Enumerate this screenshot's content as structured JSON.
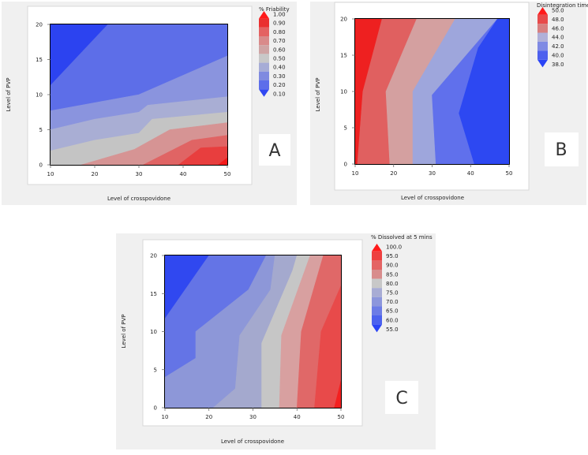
{
  "chart_data": [
    {
      "panel": "A",
      "type": "contour",
      "xlabel": "Level of crosspovidone",
      "ylabel": "Level of PVP",
      "x_ticks": [
        10,
        20,
        30,
        40,
        50
      ],
      "y_ticks": [
        0,
        5,
        10,
        15,
        20
      ],
      "xlim": [
        10,
        50
      ],
      "ylim": [
        0,
        20
      ],
      "legend_title": "% Friability",
      "legend_levels": [
        1.0,
        0.9,
        0.8,
        0.7,
        0.6,
        0.5,
        0.4,
        0.3,
        0.2,
        0.1
      ],
      "legend_labels": [
        "1.00",
        "0.90",
        "0.80",
        "0.70",
        "0.60",
        "0.50",
        "0.40",
        "0.30",
        "0.20",
        "0.10"
      ],
      "bands": [
        {
          "level": 0.2,
          "color": "#2c43f0",
          "polygon": [
            [
              10,
              11.3
            ],
            [
              23,
              20
            ],
            [
              10,
              20
            ]
          ]
        },
        {
          "level": 0.3,
          "color": "#5d6ee8",
          "polygon": [
            [
              10,
              7.7
            ],
            [
              30,
              10
            ],
            [
              50,
              15.5
            ],
            [
              50,
              20
            ],
            [
              23,
              20
            ],
            [
              10,
              11.3
            ]
          ]
        },
        {
          "level": 0.4,
          "color": "#8a94de",
          "polygon": [
            [
              10,
              5
            ],
            [
              20,
              6.5
            ],
            [
              30,
              7.5
            ],
            [
              32,
              8.5
            ],
            [
              50,
              9.7
            ],
            [
              50,
              15.5
            ],
            [
              30,
              10
            ],
            [
              10,
              7.7
            ]
          ]
        },
        {
          "level": 0.5,
          "color": "#a9aed4",
          "polygon": [
            [
              10,
              2
            ],
            [
              20,
              3.5
            ],
            [
              30,
              4.5
            ],
            [
              33,
              6.5
            ],
            [
              50,
              7.5
            ],
            [
              50,
              9.7
            ],
            [
              32,
              8.5
            ],
            [
              30,
              7.5
            ],
            [
              20,
              6.5
            ],
            [
              10,
              5
            ]
          ]
        },
        {
          "level": 0.6,
          "color": "#c4c4c4",
          "polygon": [
            [
              10,
              0
            ],
            [
              17,
              0
            ],
            [
              29,
              2.2
            ],
            [
              37,
              5
            ],
            [
              50,
              6
            ],
            [
              50,
              7.5
            ],
            [
              33,
              6.5
            ],
            [
              30,
              4.5
            ],
            [
              20,
              3.5
            ],
            [
              10,
              2
            ]
          ]
        },
        {
          "level": 0.7,
          "color": "#d69494",
          "polygon": [
            [
              17,
              0
            ],
            [
              31,
              0
            ],
            [
              42,
              3.5
            ],
            [
              50,
              4.2
            ],
            [
              50,
              6
            ],
            [
              37,
              5
            ],
            [
              29,
              2.2
            ]
          ]
        },
        {
          "level": 0.8,
          "color": "#e06464",
          "polygon": [
            [
              31,
              0
            ],
            [
              39,
              0
            ],
            [
              44,
              2.4
            ],
            [
              50,
              2.6
            ],
            [
              50,
              4.2
            ],
            [
              42,
              3.5
            ]
          ]
        },
        {
          "level": 0.9,
          "color": "#e83e3e",
          "polygon": [
            [
              39,
              0
            ],
            [
              48,
              0
            ],
            [
              50,
              1
            ],
            [
              50,
              2.6
            ],
            [
              44,
              2.4
            ]
          ]
        },
        {
          "level": 1.0,
          "color": "#f41a1a",
          "polygon": [
            [
              48,
              0
            ],
            [
              50,
              0
            ],
            [
              50,
              1
            ]
          ]
        }
      ]
    },
    {
      "panel": "B",
      "type": "contour",
      "xlabel": "Level of crosspovidone",
      "ylabel": "Level of PVP",
      "x_ticks": [
        10,
        20,
        30,
        40,
        50
      ],
      "y_ticks": [
        0,
        5,
        10,
        15,
        20
      ],
      "xlim": [
        10,
        50
      ],
      "ylim": [
        0,
        20
      ],
      "legend_title": "Disintegration time",
      "legend_levels": [
        50.0,
        48.0,
        46.0,
        44.0,
        42.0,
        40.0,
        38.0
      ],
      "legend_labels": [
        "50.0",
        "48.0",
        "46.0",
        "44.0",
        "42.0",
        "40.0",
        "38.0"
      ],
      "bands": [
        {
          "level": 48.0,
          "color": "#ee2020",
          "polygon": [
            [
              10,
              0
            ],
            [
              10.6,
              0
            ],
            [
              12,
              10
            ],
            [
              17,
              20
            ],
            [
              10,
              20
            ]
          ]
        },
        {
          "level": 46.0,
          "color": "#e06060",
          "polygon": [
            [
              10.6,
              0
            ],
            [
              19,
              0
            ],
            [
              18,
              10
            ],
            [
              26,
              20
            ],
            [
              17,
              20
            ],
            [
              12,
              10
            ]
          ]
        },
        {
          "level": 44.0,
          "color": "#d4a0a0",
          "polygon": [
            [
              19,
              0
            ],
            [
              25,
              0
            ],
            [
              25,
              10
            ],
            [
              36,
              20
            ],
            [
              26,
              20
            ],
            [
              18,
              10
            ]
          ]
        },
        {
          "level": 42.0,
          "color": "#9ea6dc",
          "polygon": [
            [
              25,
              0
            ],
            [
              31,
              0
            ],
            [
              30,
              9.5
            ],
            [
              47,
              20
            ],
            [
              36,
              20
            ],
            [
              25,
              10
            ]
          ]
        },
        {
          "level": 40.0,
          "color": "#6070ec",
          "polygon": [
            [
              31,
              0
            ],
            [
              41,
              0
            ],
            [
              37,
              7
            ],
            [
              42,
              16
            ],
            [
              47,
              20
            ],
            [
              30,
              9.5
            ]
          ]
        },
        {
          "level": 38.0,
          "color": "#2d48f2",
          "polygon": [
            [
              41,
              0
            ],
            [
              50,
              0
            ],
            [
              50,
              20
            ],
            [
              47,
              20
            ],
            [
              42,
              16
            ],
            [
              37,
              7
            ]
          ]
        }
      ]
    },
    {
      "panel": "C",
      "type": "contour",
      "xlabel": "Level of crosspovidone",
      "ylabel": "Level of PVP",
      "x_ticks": [
        10,
        20,
        30,
        40,
        50
      ],
      "y_ticks": [
        0,
        5,
        10,
        15,
        20
      ],
      "xlim": [
        10,
        50
      ],
      "ylim": [
        0,
        20
      ],
      "legend_title": "% Dissolved at 5 mins",
      "legend_levels": [
        100.0,
        95.0,
        90.0,
        85.0,
        80.0,
        75.0,
        70.0,
        65.0,
        60.0,
        55.0
      ],
      "legend_labels": [
        "100.0",
        "95.0",
        "90.0",
        "85.0",
        "80.0",
        "75.0",
        "70.0",
        "65.0",
        "60.0",
        "55.0"
      ],
      "bands": [
        {
          "level": 60.0,
          "color": "#3048f0",
          "polygon": [
            [
              10,
              11.7
            ],
            [
              20,
              20
            ],
            [
              10,
              20
            ]
          ]
        },
        {
          "level": 65.0,
          "color": "#6474e6",
          "polygon": [
            [
              10,
              4
            ],
            [
              17,
              6.5
            ],
            [
              17,
              10
            ],
            [
              29,
              15.5
            ],
            [
              33,
              20
            ],
            [
              20,
              20
            ],
            [
              10,
              11.7
            ]
          ]
        },
        {
          "level": 70.0,
          "color": "#8d97d8",
          "polygon": [
            [
              10,
              0
            ],
            [
              21,
              0
            ],
            [
              26,
              2.5
            ],
            [
              27,
              9.5
            ],
            [
              34,
              15.5
            ],
            [
              35,
              20
            ],
            [
              33,
              20
            ],
            [
              29,
              15.5
            ],
            [
              17,
              10
            ],
            [
              17,
              6.5
            ],
            [
              10,
              4
            ]
          ]
        },
        {
          "level": 75.0,
          "color": "#a4a9ce",
          "polygon": [
            [
              21,
              0
            ],
            [
              32,
              0
            ],
            [
              32,
              8.5
            ],
            [
              39,
              18
            ],
            [
              40,
              20
            ],
            [
              35,
              20
            ],
            [
              34,
              15.5
            ],
            [
              27,
              9.5
            ],
            [
              26,
              2.5
            ]
          ]
        },
        {
          "level": 80.0,
          "color": "#c6c6c6",
          "polygon": [
            [
              32,
              0
            ],
            [
              36,
              0
            ],
            [
              36.5,
              9.5
            ],
            [
              43,
              20
            ],
            [
              40,
              20
            ],
            [
              39,
              18
            ],
            [
              32,
              8.5
            ]
          ]
        },
        {
          "level": 85.0,
          "color": "#d8a0a0",
          "polygon": [
            [
              36,
              0
            ],
            [
              40,
              0
            ],
            [
              41,
              10
            ],
            [
              46,
              20
            ],
            [
              43,
              20
            ],
            [
              36.5,
              9.5
            ]
          ]
        },
        {
          "level": 90.0,
          "color": "#e06868",
          "polygon": [
            [
              40,
              0
            ],
            [
              44,
              0
            ],
            [
              45.5,
              10
            ],
            [
              50,
              16
            ],
            [
              50,
              20
            ],
            [
              46,
              20
            ],
            [
              41,
              10
            ]
          ]
        },
        {
          "level": 95.0,
          "color": "#e84a4a",
          "polygon": [
            [
              44,
              0
            ],
            [
              48.5,
              0
            ],
            [
              50,
              3.5
            ],
            [
              50,
              16
            ],
            [
              45.5,
              10
            ]
          ]
        },
        {
          "level": 100.0,
          "color": "#f42020",
          "polygon": [
            [
              48.5,
              0
            ],
            [
              50,
              0
            ],
            [
              50,
              3.5
            ]
          ]
        }
      ]
    }
  ],
  "panel_letters": [
    "A",
    "B",
    "C"
  ],
  "legend_colors": {
    "A": [
      "#ff1a1a",
      "#ea3030",
      "#e46262",
      "#d98a8a",
      "#cfa4a4",
      "#c8c8c8",
      "#a6acd6",
      "#7f8ae0",
      "#5d6eea",
      "#3148f2"
    ],
    "B": [
      "#ff1a1a",
      "#e84a4a",
      "#d88080",
      "#b0b0d8",
      "#7f8ae4",
      "#4d60ee",
      "#2a44f6"
    ],
    "C": [
      "#ff1a1a",
      "#ee4040",
      "#e46464",
      "#d88c8c",
      "#c8c8c8",
      "#a8acd4",
      "#8c96dc",
      "#6c7ce6",
      "#4c62ee",
      "#2a44f6"
    ]
  }
}
